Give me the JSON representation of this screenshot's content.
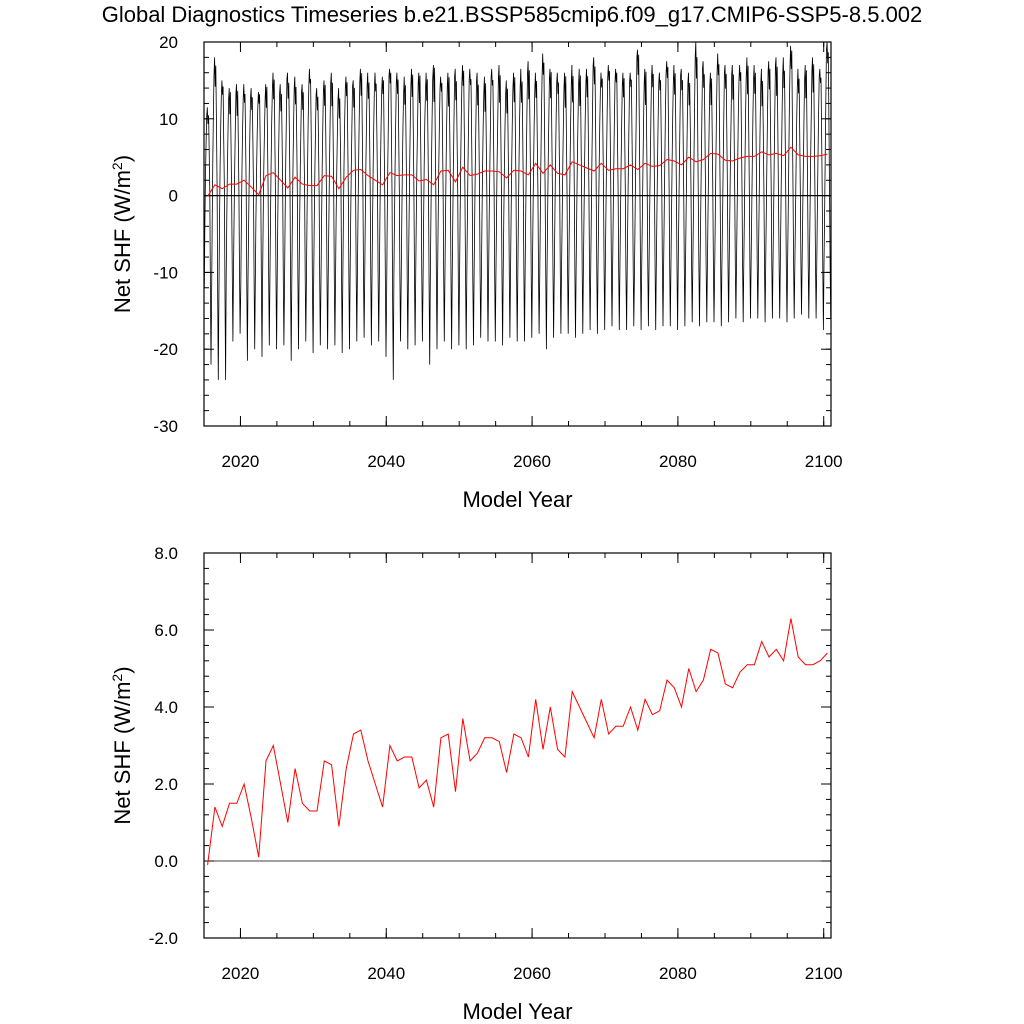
{
  "title": "Global Diagnostics Timeseries b.e21.BSSP585cmip6.f09_g17.CMIP6-SSP5-8.5.002",
  "colors": {
    "monthly": "#000000",
    "annual": "#ff0000",
    "zero_line": "#000000"
  },
  "chart_data": [
    {
      "type": "line",
      "xlabel": "Model Year",
      "ylabel": "Net SHF (W/m",
      "ylabel_sup": "2",
      "ylabel_close": ")",
      "xlim": [
        2015,
        2101
      ],
      "ylim": [
        -30,
        20
      ],
      "xticks": [
        2020,
        2040,
        2060,
        2080,
        2100
      ],
      "xtick_labels": [
        "2020",
        "2040",
        "2060",
        "2080",
        "2100"
      ],
      "yticks": [
        -30,
        -20,
        -10,
        0,
        10,
        20
      ],
      "ytick_labels": [
        "-30",
        "-20",
        "-10",
        "0",
        "10",
        "20"
      ],
      "reference_line": 0,
      "series": [
        {
          "kind": "monthly",
          "years": [
            2015,
            2016,
            2017,
            2018,
            2019,
            2020,
            2021,
            2022,
            2023,
            2024,
            2025,
            2026,
            2027,
            2028,
            2029,
            2030,
            2031,
            2032,
            2033,
            2034,
            2035,
            2036,
            2037,
            2038,
            2039,
            2040,
            2041,
            2042,
            2043,
            2044,
            2045,
            2046,
            2047,
            2048,
            2049,
            2050,
            2051,
            2052,
            2053,
            2054,
            2055,
            2056,
            2057,
            2058,
            2059,
            2060,
            2061,
            2062,
            2063,
            2064,
            2065,
            2066,
            2067,
            2068,
            2069,
            2070,
            2071,
            2072,
            2073,
            2074,
            2075,
            2076,
            2077,
            2078,
            2079,
            2080,
            2081,
            2082,
            2083,
            2084,
            2085,
            2086,
            2087,
            2088,
            2089,
            2090,
            2091,
            2092,
            2093,
            2094,
            2095,
            2096,
            2097,
            2098,
            2099,
            2100
          ],
          "max": [
            11.5,
            18.0,
            15.0,
            14.0,
            14.5,
            14.5,
            14.0,
            13.5,
            14.5,
            16.0,
            14.5,
            16.0,
            15.5,
            14.5,
            16.5,
            14.0,
            15.0,
            16.0,
            14.0,
            15.5,
            15.0,
            16.5,
            16.0,
            16.0,
            15.5,
            16.5,
            16.0,
            15.5,
            16.5,
            16.0,
            16.0,
            17.0,
            15.5,
            16.0,
            16.5,
            17.0,
            16.5,
            16.0,
            15.5,
            16.5,
            17.0,
            15.0,
            16.0,
            16.5,
            17.5,
            16.0,
            18.5,
            16.5,
            16.0,
            16.0,
            17.0,
            16.5,
            16.5,
            18.0,
            16.0,
            17.0,
            16.5,
            16.0,
            16.0,
            19.0,
            16.5,
            17.0,
            16.0,
            17.5,
            17.0,
            16.5,
            16.0,
            20.0,
            17.5,
            16.0,
            18.5,
            17.0,
            17.0,
            17.0,
            18.0,
            17.0,
            16.5,
            17.5,
            18.0,
            18.0,
            19.5,
            16.5,
            17.0,
            18.0,
            16.5,
            20.0
          ],
          "min": [
            -22.0,
            -24.0,
            -24.0,
            -19.0,
            -18.0,
            -21.5,
            -20.0,
            -21.0,
            -19.5,
            -20.0,
            -19.5,
            -21.5,
            -20.0,
            -19.0,
            -20.5,
            -19.5,
            -20.0,
            -19.5,
            -20.5,
            -20.0,
            -19.0,
            -18.5,
            -19.5,
            -19.0,
            -21.0,
            -24.0,
            -19.0,
            -20.0,
            -19.5,
            -19.0,
            -22.0,
            -20.0,
            -19.0,
            -20.0,
            -19.5,
            -20.0,
            -19.5,
            -18.5,
            -19.0,
            -19.0,
            -19.5,
            -18.5,
            -19.0,
            -19.0,
            -18.5,
            -18.0,
            -20.0,
            -18.5,
            -18.0,
            -18.0,
            -18.5,
            -18.0,
            -17.5,
            -18.0,
            -17.5,
            -17.0,
            -17.5,
            -17.5,
            -17.0,
            -17.5,
            -17.0,
            -17.5,
            -17.0,
            -17.0,
            -17.5,
            -17.0,
            -16.5,
            -17.0,
            -16.5,
            -16.5,
            -17.0,
            -16.5,
            -16.0,
            -16.5,
            -16.0,
            -16.0,
            -16.5,
            -16.0,
            -16.0,
            -16.5,
            -16.0,
            -15.5,
            -16.0,
            -16.0,
            -17.5,
            -16.0
          ]
        },
        {
          "kind": "annual",
          "x": [
            2015.5,
            2016.5,
            2017.5,
            2018.5,
            2019.5,
            2020.5,
            2021.5,
            2022.5,
            2023.5,
            2024.5,
            2025.5,
            2026.5,
            2027.5,
            2028.5,
            2029.5,
            2030.5,
            2031.5,
            2032.5,
            2033.5,
            2034.5,
            2035.5,
            2036.5,
            2037.5,
            2038.5,
            2039.5,
            2040.5,
            2041.5,
            2042.5,
            2043.5,
            2044.5,
            2045.5,
            2046.5,
            2047.5,
            2048.5,
            2049.5,
            2050.5,
            2051.5,
            2052.5,
            2053.5,
            2054.5,
            2055.5,
            2056.5,
            2057.5,
            2058.5,
            2059.5,
            2060.5,
            2061.5,
            2062.5,
            2063.5,
            2064.5,
            2065.5,
            2066.5,
            2067.5,
            2068.5,
            2069.5,
            2070.5,
            2071.5,
            2072.5,
            2073.5,
            2074.5,
            2075.5,
            2076.5,
            2077.5,
            2078.5,
            2079.5,
            2080.5,
            2081.5,
            2082.5,
            2083.5,
            2084.5,
            2085.5,
            2086.5,
            2087.5,
            2088.5,
            2089.5,
            2090.5,
            2091.5,
            2092.5,
            2093.5,
            2094.5,
            2095.5,
            2096.5,
            2097.5,
            2098.5,
            2099.5,
            2100.5
          ],
          "y": [
            -0.1,
            1.4,
            0.9,
            1.5,
            1.5,
            2.0,
            1.1,
            0.1,
            2.6,
            3.0,
            2.0,
            1.0,
            2.4,
            1.5,
            1.3,
            1.3,
            2.6,
            2.5,
            0.9,
            2.4,
            3.3,
            3.4,
            2.6,
            2.0,
            1.4,
            3.0,
            2.6,
            2.7,
            2.7,
            1.9,
            2.1,
            1.4,
            3.2,
            3.3,
            1.8,
            3.7,
            2.6,
            2.8,
            3.2,
            3.2,
            3.1,
            2.3,
            3.3,
            3.2,
            2.7,
            4.2,
            2.9,
            4.0,
            2.9,
            2.7,
            4.4,
            4.0,
            3.6,
            3.2,
            4.2,
            3.3,
            3.5,
            3.5,
            4.0,
            3.4,
            4.2,
            3.8,
            3.9,
            4.7,
            4.5,
            4.0,
            5.0,
            4.4,
            4.7,
            5.5,
            5.4,
            4.6,
            4.5,
            4.9,
            5.1,
            5.1,
            5.7,
            5.3,
            5.5,
            5.2,
            6.3,
            5.3,
            5.1,
            5.1,
            5.2,
            5.4
          ]
        }
      ]
    },
    {
      "type": "line",
      "xlabel": "Model Year",
      "ylabel": "Net SHF (W/m",
      "ylabel_sup": "2",
      "ylabel_close": ")",
      "xlim": [
        2015,
        2101
      ],
      "ylim": [
        -2.0,
        8.0
      ],
      "xticks": [
        2020,
        2040,
        2060,
        2080,
        2100
      ],
      "xtick_labels": [
        "2020",
        "2040",
        "2060",
        "2080",
        "2100"
      ],
      "yticks": [
        -2.0,
        0.0,
        2.0,
        4.0,
        6.0,
        8.0
      ],
      "ytick_labels": [
        "-2.0",
        "0.0",
        "2.0",
        "4.0",
        "6.0",
        "8.0"
      ],
      "reference_line": 0,
      "series": [
        {
          "kind": "annual",
          "x": [
            2015.5,
            2016.5,
            2017.5,
            2018.5,
            2019.5,
            2020.5,
            2021.5,
            2022.5,
            2023.5,
            2024.5,
            2025.5,
            2026.5,
            2027.5,
            2028.5,
            2029.5,
            2030.5,
            2031.5,
            2032.5,
            2033.5,
            2034.5,
            2035.5,
            2036.5,
            2037.5,
            2038.5,
            2039.5,
            2040.5,
            2041.5,
            2042.5,
            2043.5,
            2044.5,
            2045.5,
            2046.5,
            2047.5,
            2048.5,
            2049.5,
            2050.5,
            2051.5,
            2052.5,
            2053.5,
            2054.5,
            2055.5,
            2056.5,
            2057.5,
            2058.5,
            2059.5,
            2060.5,
            2061.5,
            2062.5,
            2063.5,
            2064.5,
            2065.5,
            2066.5,
            2067.5,
            2068.5,
            2069.5,
            2070.5,
            2071.5,
            2072.5,
            2073.5,
            2074.5,
            2075.5,
            2076.5,
            2077.5,
            2078.5,
            2079.5,
            2080.5,
            2081.5,
            2082.5,
            2083.5,
            2084.5,
            2085.5,
            2086.5,
            2087.5,
            2088.5,
            2089.5,
            2090.5,
            2091.5,
            2092.5,
            2093.5,
            2094.5,
            2095.5,
            2096.5,
            2097.5,
            2098.5,
            2099.5,
            2100.5
          ],
          "y": [
            -0.1,
            1.4,
            0.9,
            1.5,
            1.5,
            2.0,
            1.1,
            0.1,
            2.6,
            3.0,
            2.0,
            1.0,
            2.4,
            1.5,
            1.3,
            1.3,
            2.6,
            2.5,
            0.9,
            2.4,
            3.3,
            3.4,
            2.6,
            2.0,
            1.4,
            3.0,
            2.6,
            2.7,
            2.7,
            1.9,
            2.1,
            1.4,
            3.2,
            3.3,
            1.8,
            3.7,
            2.6,
            2.8,
            3.2,
            3.2,
            3.1,
            2.3,
            3.3,
            3.2,
            2.7,
            4.2,
            2.9,
            4.0,
            2.9,
            2.7,
            4.4,
            4.0,
            3.6,
            3.2,
            4.2,
            3.3,
            3.5,
            3.5,
            4.0,
            3.4,
            4.2,
            3.8,
            3.9,
            4.7,
            4.5,
            4.0,
            5.0,
            4.4,
            4.7,
            5.5,
            5.4,
            4.6,
            4.5,
            4.9,
            5.1,
            5.1,
            5.7,
            5.3,
            5.5,
            5.2,
            6.3,
            5.3,
            5.1,
            5.1,
            5.2,
            5.4
          ]
        }
      ]
    }
  ]
}
